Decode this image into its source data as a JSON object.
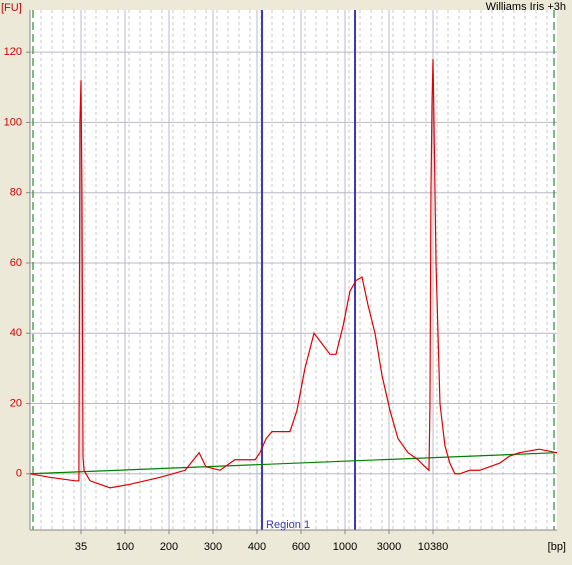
{
  "chart_data": {
    "type": "line",
    "title": "Williams Iris +3h",
    "y_label": "[FU]",
    "x_label": "[bp]",
    "xlim": [
      20,
      20000
    ],
    "xticks": [
      35,
      100,
      200,
      300,
      400,
      600,
      1000,
      3000,
      10380
    ],
    "ylim": [
      -16,
      132
    ],
    "yticks": [
      0,
      20,
      40,
      60,
      80,
      100,
      120
    ],
    "grid": true,
    "regions": [
      {
        "label": "Region 1",
        "start": 419,
        "end": 1284,
        "color": "#3a3ab8"
      }
    ],
    "series": [
      {
        "color": "#e00000",
        "x": [
          20,
          24.9,
          32.8,
          34.2,
          34.6,
          35,
          35.8,
          36.7,
          37.6,
          43.4,
          70,
          108,
          174,
          232,
          264,
          281,
          314,
          346,
          395,
          411,
          435,
          459,
          542,
          578,
          628,
          698,
          766,
          840,
          901,
          977,
          1133,
          1316,
          1529,
          1776,
          2115,
          2519,
          3085,
          3867,
          5131,
          6800,
          8283,
          9269,
          9530,
          9800,
          10090,
          10380,
          10435,
          10546,
          10770,
          11055,
          11350,
          11650,
          11960,
          12610,
          13290,
          14760,
          15550,
          16390,
          18200,
          20000
        ],
        "values": [
          0,
          -1,
          -2,
          -2,
          100,
          112,
          80,
          5,
          1,
          -2,
          -4,
          -3,
          -1,
          1,
          6,
          2,
          1,
          4,
          4,
          6,
          10,
          12,
          12,
          18,
          30,
          40,
          37,
          34,
          34,
          42,
          52,
          55,
          56,
          48,
          40,
          28,
          18,
          10,
          6,
          4,
          2,
          1,
          20,
          80,
          105,
          118,
          100,
          60,
          20,
          8,
          3,
          0,
          0,
          1,
          1,
          3,
          5,
          6,
          7,
          6
        ]
      },
      {
        "color": "#008000",
        "x": [
          20,
          20000
        ],
        "values": [
          0,
          6
        ]
      }
    ]
  }
}
